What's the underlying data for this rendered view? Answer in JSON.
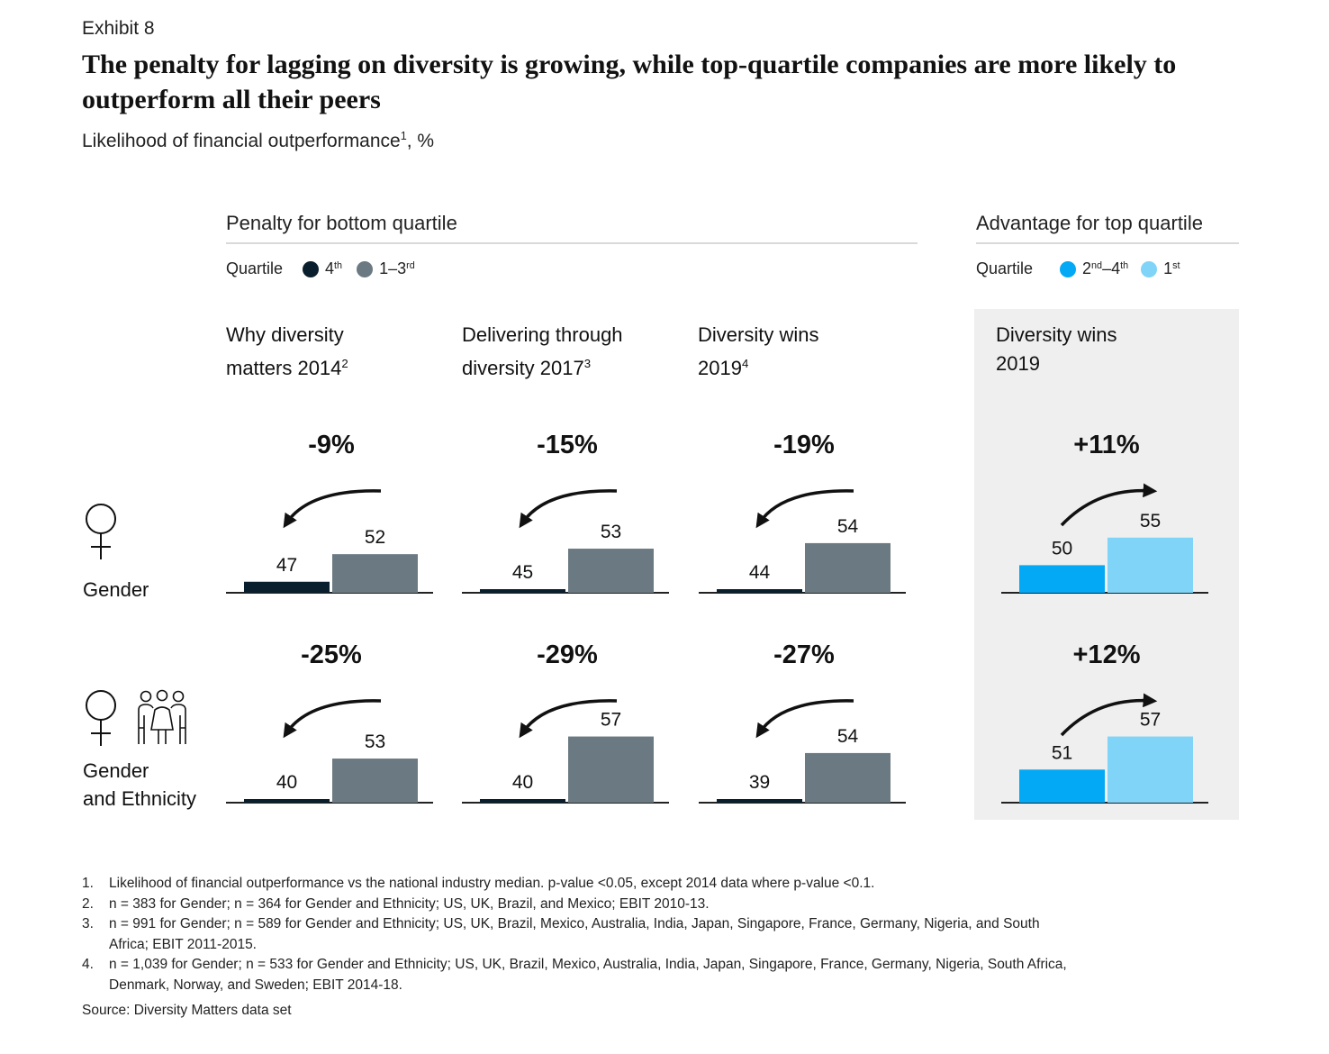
{
  "exhibit": "Exhibit 8",
  "title": "The penalty for lagging on diversity is growing, while top-quartile companies are more likely to outperform all their peers",
  "subtitle": {
    "text": "Likelihood of financial outperformance",
    "sup": "1",
    "suffix": ", %"
  },
  "sections": {
    "penalty": {
      "heading": "Penalty for bottom quartile",
      "legend_label": "Quartile",
      "legend": [
        {
          "base": "4",
          "sup": "th",
          "color": "#0a1f2e"
        },
        {
          "base": "1–3",
          "sup": "rd",
          "color": "#6b7a82"
        }
      ]
    },
    "advantage": {
      "heading": "Advantage for top quartile",
      "legend_label": "Quartile",
      "legend": [
        {
          "base": "2",
          "sup": "nd",
          "base2": "–4",
          "sup2": "th",
          "color": "#03a9f4"
        },
        {
          "base": "1",
          "sup": "st",
          "color": "#7fd4f7"
        }
      ]
    }
  },
  "columns": [
    {
      "line1": "Why diversity",
      "line2": "matters 2014",
      "sup": "2"
    },
    {
      "line1": "Delivering through",
      "line2": "diversity 2017",
      "sup": "3"
    },
    {
      "line1": "Diversity wins",
      "line2": "2019",
      "sup": "4"
    },
    {
      "line1": "Diversity wins",
      "line2": "2019",
      "sup": ""
    }
  ],
  "rows": [
    {
      "label_lines": [
        "Gender"
      ],
      "icon": "female-symbol-icon"
    },
    {
      "label_lines": [
        "Gender",
        "and Ethnicity"
      ],
      "icon": "female-symbol-and-people-group-icon"
    }
  ],
  "chart_data": {
    "type": "bar",
    "unit": "%",
    "panels": [
      {
        "row": "Gender",
        "column": "Why diversity matters 2014",
        "change": "-9%",
        "direction": "down",
        "values": [
          47,
          52
        ],
        "colors": [
          "#0a1f2e",
          "#6b7a82"
        ]
      },
      {
        "row": "Gender",
        "column": "Delivering through diversity 2017",
        "change": "-15%",
        "direction": "down",
        "values": [
          45,
          53
        ],
        "colors": [
          "#0a1f2e",
          "#6b7a82"
        ]
      },
      {
        "row": "Gender",
        "column": "Diversity wins 2019",
        "change": "-19%",
        "direction": "down",
        "values": [
          44,
          54
        ],
        "colors": [
          "#0a1f2e",
          "#6b7a82"
        ]
      },
      {
        "row": "Gender",
        "column": "Diversity wins 2019 (top quartile)",
        "change": "+11%",
        "direction": "up",
        "values": [
          50,
          55
        ],
        "colors": [
          "#03a9f4",
          "#7fd4f7"
        ]
      },
      {
        "row": "Gender and Ethnicity",
        "column": "Why diversity matters 2014",
        "change": "-25%",
        "direction": "down",
        "values": [
          40,
          53
        ],
        "colors": [
          "#0a1f2e",
          "#6b7a82"
        ]
      },
      {
        "row": "Gender and Ethnicity",
        "column": "Delivering through diversity 2017",
        "change": "-29%",
        "direction": "down",
        "values": [
          40,
          57
        ],
        "colors": [
          "#0a1f2e",
          "#6b7a82"
        ]
      },
      {
        "row": "Gender and Ethnicity",
        "column": "Diversity wins 2019",
        "change": "-27%",
        "direction": "down",
        "values": [
          39,
          54
        ],
        "colors": [
          "#0a1f2e",
          "#6b7a82"
        ]
      },
      {
        "row": "Gender and Ethnicity",
        "column": "Diversity wins 2019 (top quartile)",
        "change": "+12%",
        "direction": "up",
        "values": [
          51,
          57
        ],
        "colors": [
          "#03a9f4",
          "#7fd4f7"
        ]
      }
    ]
  },
  "footnotes": [
    {
      "num": "1.",
      "text": "Likelihood of financial outperformance vs the national industry median. p-value <0.05, except 2014 data where p-value <0.1."
    },
    {
      "num": "2.",
      "text": "n = 383 for Gender; n = 364 for Gender and Ethnicity; US, UK, Brazil, and Mexico; EBIT 2010-13."
    },
    {
      "num": "3.",
      "text": "n = 991 for Gender; n = 589 for Gender and Ethnicity; US, UK, Brazil, Mexico, Australia, India, Japan, Singapore, France, Germany, Nigeria, and South Africa; EBIT 2011-2015."
    },
    {
      "num": "4.",
      "text": "n = 1,039 for Gender; n = 533 for Gender and Ethnicity; US, UK, Brazil, Mexico, Australia, India, Japan, Singapore, France, Germany, Nigeria, South Africa, Denmark, Norway, and Sweden; EBIT 2014-18."
    }
  ],
  "source": "Source: Diversity Matters data set"
}
